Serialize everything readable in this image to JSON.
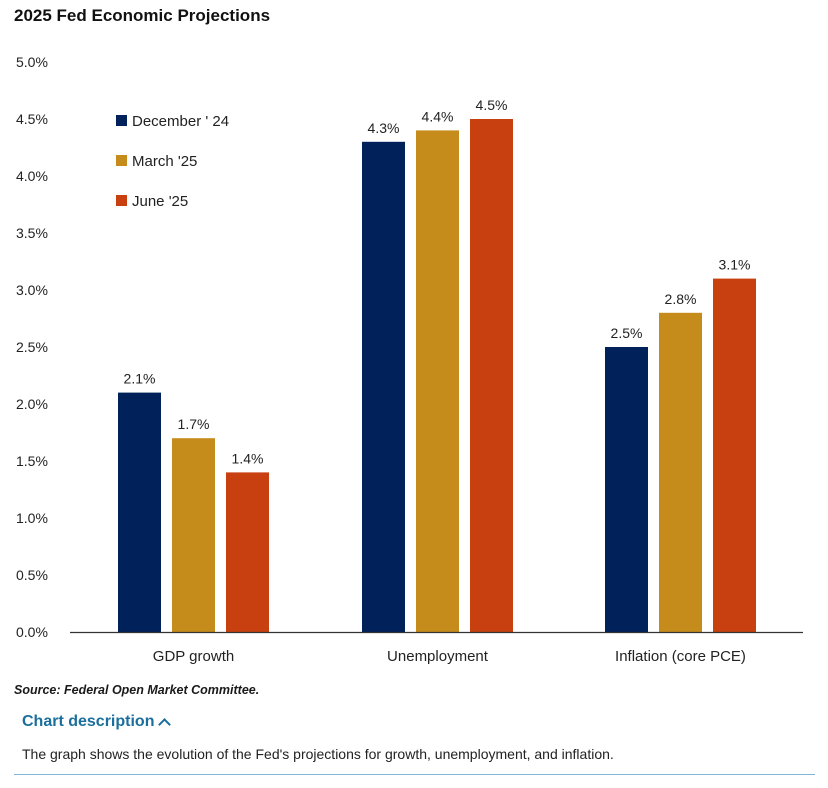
{
  "title": "2025 Fed Economic Projections",
  "source": "Source: Federal Open Market Committee.",
  "description": {
    "toggle_label": "Chart description",
    "text": "The graph shows the evolution of the Fed's projections for growth, unemployment, and inflation."
  },
  "chart_data": {
    "type": "bar",
    "title": "2025 Fed Economic Projections",
    "categories": [
      "GDP growth",
      "Unemployment",
      "Inflation (core PCE)"
    ],
    "series": [
      {
        "name": "December ' 24",
        "color": "#00215a",
        "values": [
          2.1,
          4.3,
          2.5
        ],
        "labels": [
          "2.1%",
          "4.3%",
          "2.5%"
        ]
      },
      {
        "name": "March '25",
        "color": "#c68c1b",
        "values": [
          1.7,
          4.4,
          2.8
        ],
        "labels": [
          "1.7%",
          "4.4%",
          "2.8%"
        ]
      },
      {
        "name": "June '25",
        "color": "#c8400f",
        "values": [
          1.4,
          4.5,
          3.1
        ],
        "labels": [
          "1.4%",
          "4.5%",
          "3.1%"
        ]
      }
    ],
    "ylim": [
      0,
      5
    ],
    "yticks": [
      0,
      0.5,
      1,
      1.5,
      2,
      2.5,
      3,
      3.5,
      4,
      4.5,
      5
    ],
    "ytick_labels": [
      "0.0%",
      "0.5%",
      "1.0%",
      "1.5%",
      "2.0%",
      "2.5%",
      "3.0%",
      "3.5%",
      "4.0%",
      "4.5%",
      "5.0%"
    ],
    "xlabel": "",
    "ylabel": "",
    "grid": false,
    "legend_position": "top-left"
  }
}
